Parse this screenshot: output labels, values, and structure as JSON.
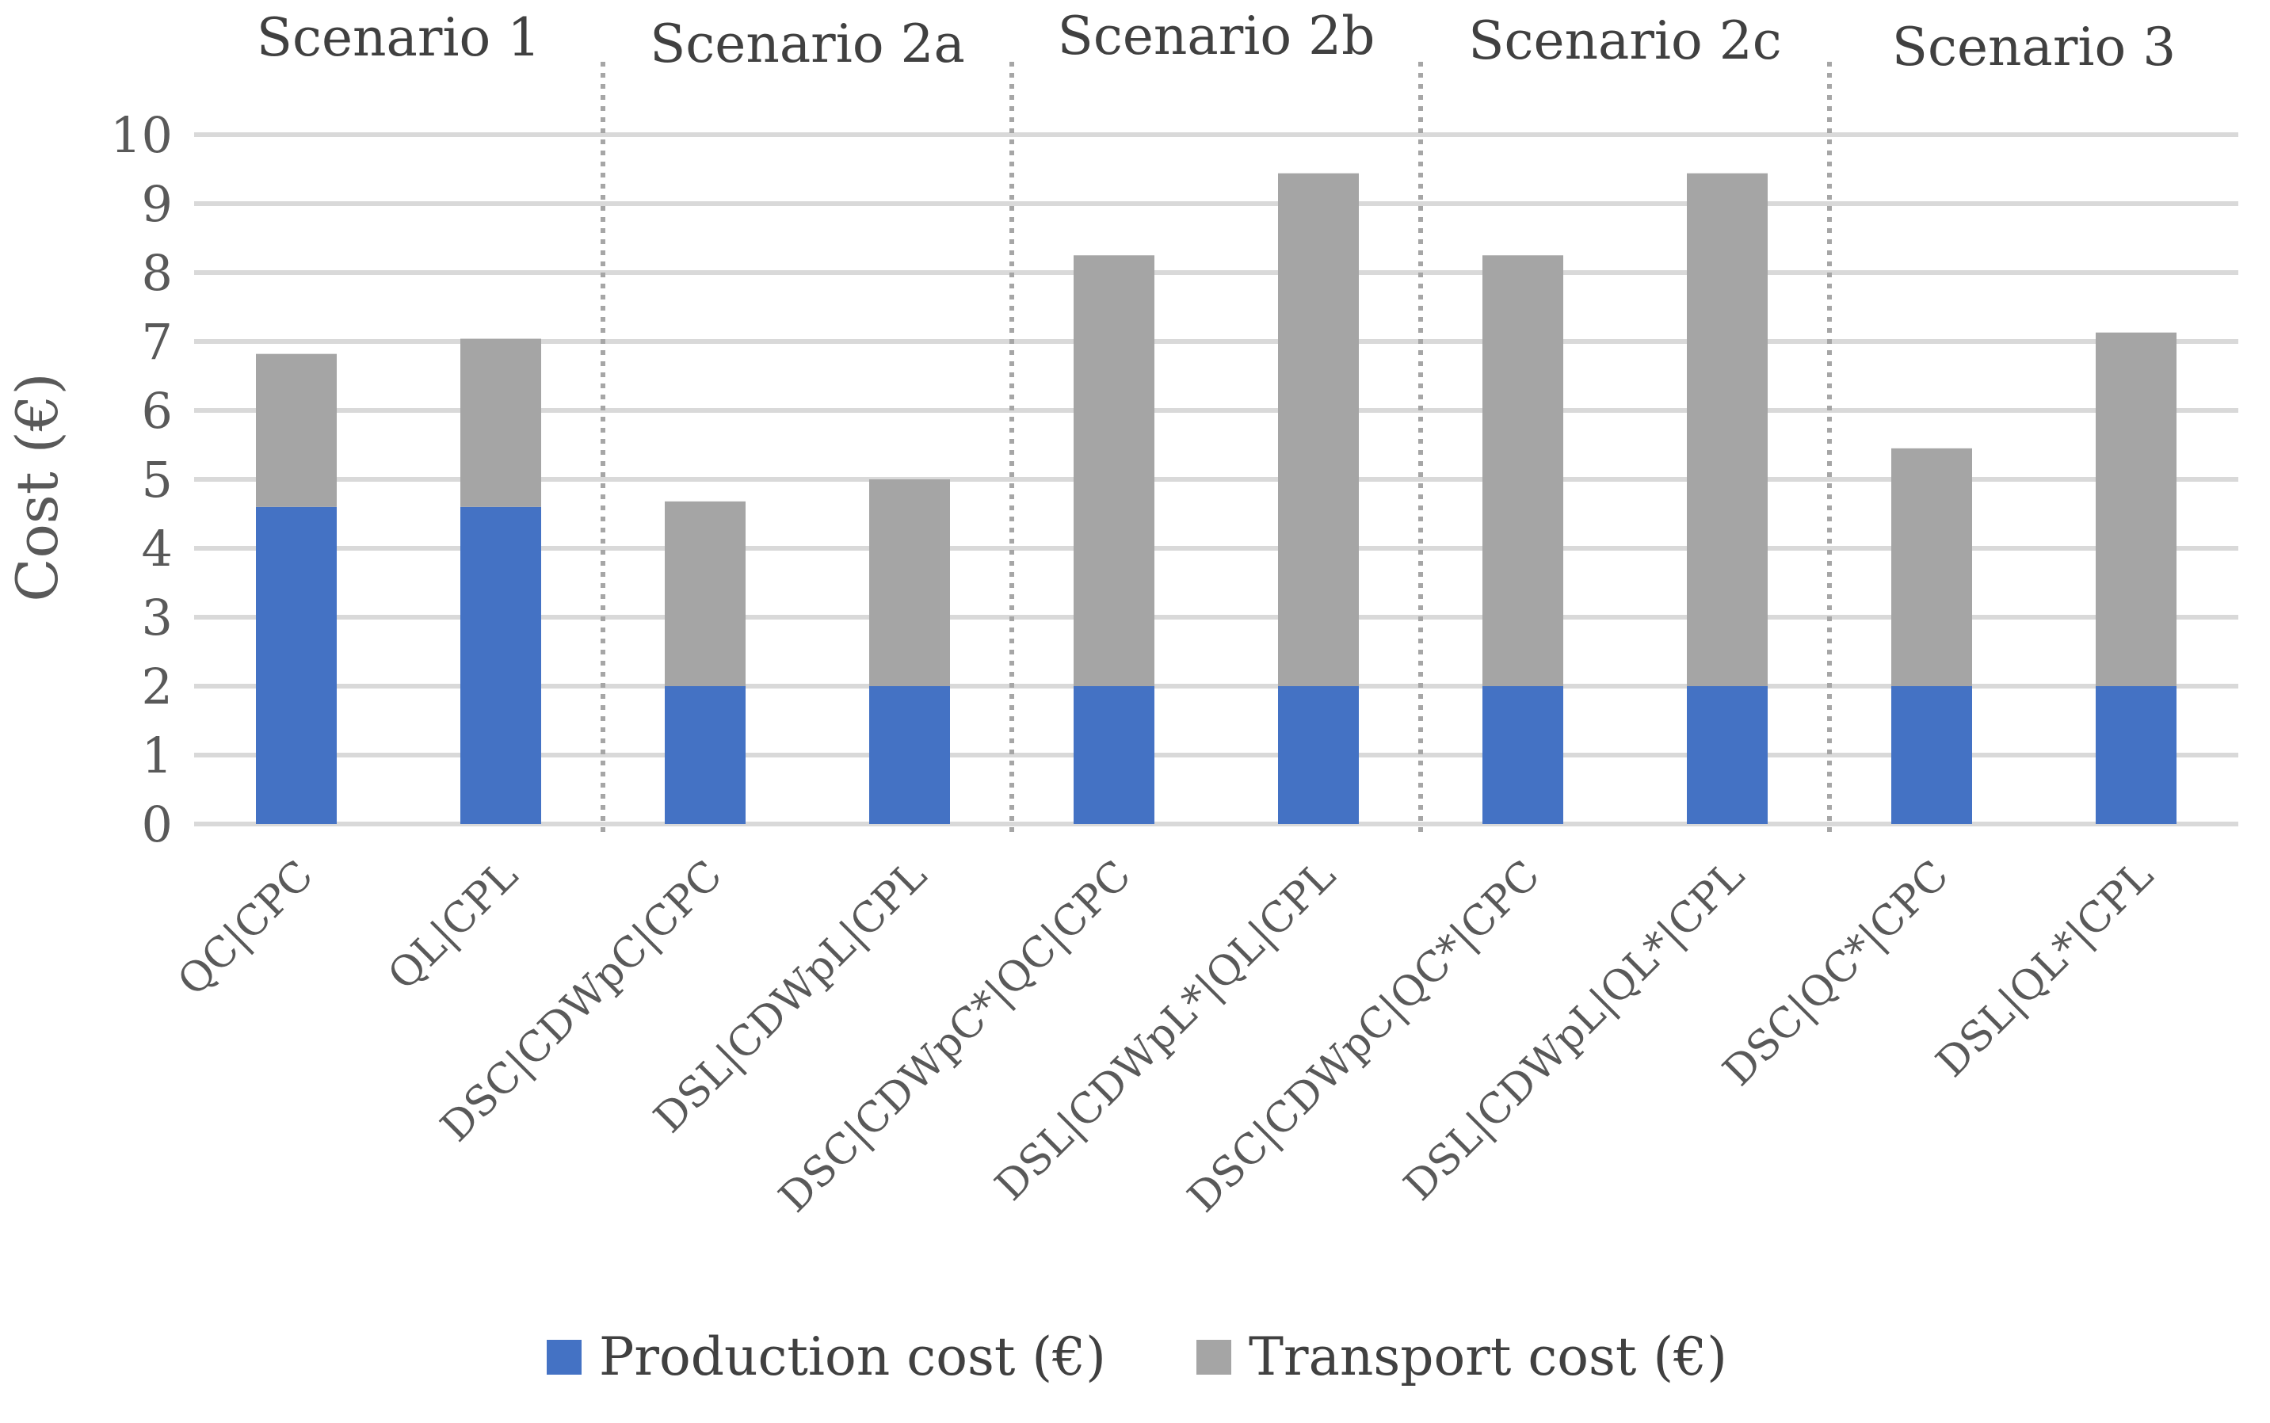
{
  "chart_data": {
    "type": "bar",
    "stacked": true,
    "title": "",
    "xlabel": "",
    "ylabel": "Cost (€)",
    "ylim": [
      0,
      10
    ],
    "yticks": [
      0,
      1,
      2,
      3,
      4,
      5,
      6,
      7,
      8,
      9,
      10
    ],
    "grid": true,
    "legend_position": "bottom",
    "categories": [
      "QC|CPC",
      "QL|CPL",
      "DSC|CDWpC|CPC",
      "DSL|CDWpL|CPL",
      "DSC|CDWpC*|QC|CPC",
      "DSL|CDWpL*|QL|CPL",
      "DSC|CDWpC|QC*|CPC",
      "DSL|CDWpL|QL*|CPL",
      "DSC|QC*|CPC",
      "DSL|QL*|CPL"
    ],
    "series": [
      {
        "name": "Production cost (€)",
        "color": "#4472c4",
        "values": [
          4.6,
          4.6,
          2.0,
          2.0,
          2.0,
          2.0,
          2.0,
          2.0,
          2.0,
          2.0
        ]
      },
      {
        "name": "Transport cost (€)",
        "color": "#a5a5a5",
        "values": [
          2.22,
          2.44,
          2.68,
          3.0,
          6.25,
          7.44,
          6.25,
          7.44,
          3.45,
          5.13
        ]
      }
    ],
    "groups": [
      {
        "label": "Scenario 1",
        "start": 0,
        "end": 1
      },
      {
        "label": "Scenario 2a",
        "start": 2,
        "end": 3
      },
      {
        "label": "Scenario 2b",
        "start": 4,
        "end": 5
      },
      {
        "label": "Scenario 2c",
        "start": 6,
        "end": 7
      },
      {
        "label": "Scenario 3",
        "start": 8,
        "end": 9
      }
    ]
  }
}
